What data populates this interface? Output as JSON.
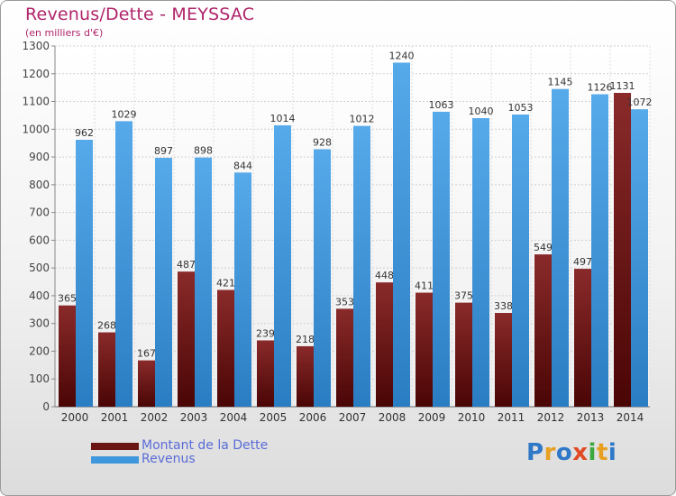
{
  "title": "Revenus/Dette - MEYSSAC",
  "subtitle": "(en milliers d'€)",
  "chart_data": {
    "type": "bar",
    "title": "Revenus/Dette - MEYSSAC",
    "subtitle": "(en milliers d'€)",
    "categories": [
      "2000",
      "2001",
      "2002",
      "2003",
      "2004",
      "2005",
      "2006",
      "2007",
      "2008",
      "2009",
      "2010",
      "2011",
      "2012",
      "2013",
      "2014"
    ],
    "series": [
      {
        "name": "Montant de la Dette",
        "color": "#7a1c1c",
        "values": [
          365,
          268,
          167,
          487,
          421,
          239,
          218,
          353,
          448,
          411,
          375,
          338,
          549,
          497,
          1131
        ]
      },
      {
        "name": "Revenus",
        "color": "#3f97dc",
        "values": [
          962,
          1029,
          897,
          898,
          844,
          1014,
          928,
          1012,
          1240,
          1063,
          1040,
          1053,
          1145,
          1126,
          1072
        ]
      }
    ],
    "ylim": [
      0,
      1300
    ],
    "yticks": [
      0,
      100,
      200,
      300,
      400,
      500,
      600,
      700,
      800,
      900,
      1000,
      1100,
      1200,
      1300
    ],
    "grid": true,
    "legend": "bottom-left"
  },
  "legend": [
    {
      "label": "Montant de la Dette",
      "color": "#6a1414"
    },
    {
      "label": "Revenus",
      "color": "#3f97dc"
    }
  ],
  "logo": {
    "text": "Proxiti",
    "letters": [
      {
        "ch": "P",
        "color": "#2f78c8"
      },
      {
        "ch": "r",
        "color": "#e8a020"
      },
      {
        "ch": "o",
        "color": "#2f78c8"
      },
      {
        "ch": "x",
        "color": "#e04a26"
      },
      {
        "ch": "i",
        "color": "#3ea83e"
      },
      {
        "ch": "t",
        "color": "#e8a020"
      },
      {
        "ch": "i",
        "color": "#2f78c8"
      }
    ]
  }
}
